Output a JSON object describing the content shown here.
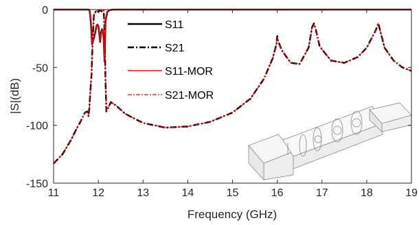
{
  "chart_data": {
    "type": "line",
    "xlabel": "Frequency (GHz)",
    "ylabel": "|S|(dB)",
    "xlim": [
      11,
      19
    ],
    "ylim": [
      -150,
      0
    ],
    "xticks": [
      "11",
      "12",
      "13",
      "14",
      "15",
      "16",
      "17",
      "18",
      "19"
    ],
    "yticks": [
      "0",
      "-50",
      "-100",
      "-150"
    ],
    "legend_position": "top-center",
    "grid": false,
    "series": [
      {
        "name": "S11",
        "color": "#000000",
        "style": "solid",
        "x": [
          11,
          11.79,
          11.8,
          11.81,
          11.82,
          11.84,
          11.86,
          11.9,
          11.94,
          11.96,
          11.98,
          12.0,
          12.02,
          12.04,
          12.06,
          12.08,
          12.1,
          12.12,
          12.14,
          12.16,
          12.2,
          12.25,
          12.3,
          12.4,
          19
        ],
        "y": [
          0,
          0,
          -0.5,
          -2,
          -5,
          -15,
          -30,
          -25,
          -18,
          -14,
          -13,
          -14,
          -20,
          -28,
          -20,
          -17,
          -18,
          -25,
          -45,
          -10,
          -2,
          -0.5,
          -0.1,
          0,
          0
        ]
      },
      {
        "name": "S21",
        "color": "#000000",
        "style": "dashdot",
        "x": [
          11,
          11.2,
          11.4,
          11.5,
          11.6,
          11.7,
          11.75,
          11.78,
          11.8,
          11.82,
          11.85,
          11.87,
          11.9,
          11.95,
          11.98,
          12.0,
          12.02,
          12.05,
          12.08,
          12.1,
          12.12,
          12.14,
          12.16,
          12.18,
          12.22,
          12.28,
          12.4,
          12.6,
          13.0,
          13.5,
          14.0,
          14.5,
          15.0,
          15.4,
          15.7,
          15.9,
          15.98,
          16.0,
          16.02,
          16.1,
          16.3,
          16.5,
          16.7,
          16.78,
          16.82,
          16.86,
          16.95,
          17.2,
          17.5,
          17.8,
          18.0,
          18.2,
          18.26,
          18.3,
          18.4,
          18.6,
          18.8,
          19.0
        ],
        "y": [
          -133,
          -125,
          -112,
          -104,
          -97,
          -89,
          -88,
          -92,
          -85,
          -72,
          -55,
          -30,
          -5,
          -1,
          -1,
          -2,
          -1,
          -0.5,
          -2,
          -1,
          -0.5,
          -20,
          -60,
          -88,
          -85,
          -80,
          -83,
          -90,
          -98,
          -102,
          -101,
          -97,
          -89,
          -77,
          -60,
          -42,
          -30,
          -23,
          -27,
          -35,
          -46,
          -47,
          -33,
          -15,
          -12,
          -17,
          -32,
          -44,
          -46,
          -41,
          -33,
          -18,
          -12,
          -18,
          -33,
          -44,
          -50,
          -53
        ]
      },
      {
        "name": "S11-MOR",
        "color": "#ff0000",
        "style": "solid",
        "x": [
          11,
          11.79,
          11.8,
          11.81,
          11.82,
          11.84,
          11.86,
          11.9,
          11.94,
          11.96,
          11.98,
          12.0,
          12.02,
          12.04,
          12.06,
          12.08,
          12.1,
          12.12,
          12.14,
          12.16,
          12.2,
          12.25,
          12.3,
          12.4,
          19
        ],
        "y": [
          0,
          0,
          -0.5,
          -2,
          -5,
          -15,
          -30,
          -25,
          -18,
          -14,
          -13,
          -14,
          -20,
          -28,
          -20,
          -17,
          -18,
          -25,
          -45,
          -10,
          -2,
          -0.5,
          -0.1,
          0,
          0
        ]
      },
      {
        "name": "S21-MOR",
        "color": "#ff0000",
        "style": "dashdot",
        "x": [
          11,
          11.2,
          11.4,
          11.5,
          11.6,
          11.7,
          11.75,
          11.78,
          11.8,
          11.82,
          11.85,
          11.87,
          11.9,
          11.95,
          11.98,
          12.0,
          12.02,
          12.05,
          12.08,
          12.1,
          12.12,
          12.14,
          12.16,
          12.18,
          12.22,
          12.28,
          12.4,
          12.6,
          13.0,
          13.5,
          14.0,
          14.5,
          15.0,
          15.4,
          15.7,
          15.9,
          15.98,
          16.0,
          16.02,
          16.1,
          16.3,
          16.5,
          16.7,
          16.78,
          16.82,
          16.86,
          16.95,
          17.2,
          17.5,
          17.8,
          18.0,
          18.2,
          18.26,
          18.3,
          18.4,
          18.6,
          18.8,
          19.0
        ],
        "y": [
          -133,
          -125,
          -112,
          -104,
          -97,
          -89,
          -88,
          -92,
          -85,
          -72,
          -55,
          -30,
          -5,
          -1,
          -1,
          -2,
          -1,
          -0.5,
          -2,
          -1,
          -0.5,
          -20,
          -60,
          -88,
          -85,
          -80,
          -83,
          -90,
          -98,
          -102,
          -101,
          -97,
          -89,
          -77,
          -60,
          -42,
          -30,
          -23,
          -27,
          -35,
          -46,
          -47,
          -33,
          -15,
          -12,
          -17,
          -32,
          -44,
          -46,
          -41,
          -33,
          -18,
          -12,
          -18,
          -33,
          -44,
          -50,
          -53
        ]
      }
    ]
  }
}
